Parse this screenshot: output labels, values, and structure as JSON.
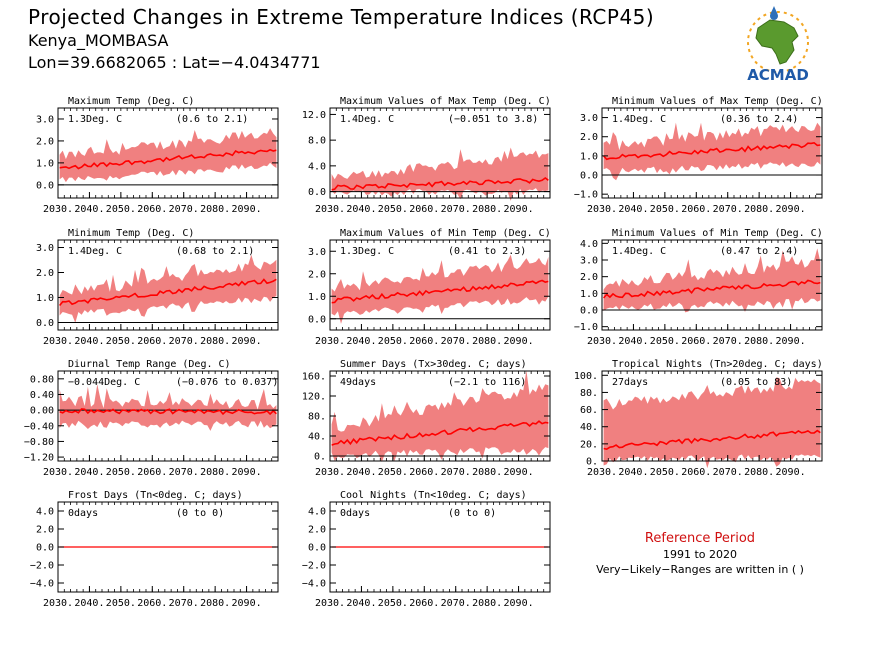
{
  "header": {
    "title": "Projected Changes in Extreme Temperature Indices (RCP45)",
    "location": "Kenya_MOMBASA",
    "coords": "Lon=39.6682065 : Lat=−4.0434771"
  },
  "logo": {
    "text": "ACMAD"
  },
  "reference": {
    "title": "Reference Period",
    "years": "1991 to 2020",
    "note": "Very−Likely−Ranges are written in ( )"
  },
  "colors": {
    "median": "#ff0000",
    "band": "#f08080",
    "zero_line": "#000000"
  },
  "chart_data": [
    {
      "id": "maxtemp",
      "type": "area",
      "title": "Maximum Temp (Deg. C)",
      "value_label": "1.3Deg. C",
      "range_label": "(0.6 to 2.1)",
      "x_range": [
        2030,
        2099
      ],
      "ylim": [
        -0.6,
        3.5
      ],
      "y_ticks": [
        0.0,
        1.0,
        2.0,
        3.0
      ],
      "tick_labels": [
        "0.0",
        "1.0",
        "2.0",
        "3.0"
      ],
      "median": {
        "start": 0.75,
        "end": 1.6
      },
      "band": {
        "low_start": 0.2,
        "low_end": 0.9,
        "high_start": 1.3,
        "high_end": 2.4
      }
    },
    {
      "id": "maxmaxtemp",
      "type": "area",
      "title": "Maximum Values of Max Temp (Deg. C)",
      "value_label": "1.4Deg. C",
      "range_label": "(−0.051 to 3.8)",
      "x_range": [
        2030,
        2099
      ],
      "ylim": [
        -1.0,
        13.0
      ],
      "y_ticks": [
        0.0,
        4.0,
        8.0,
        12.0
      ],
      "tick_labels": [
        "0.0",
        "4.0",
        "8.0",
        "12.0"
      ],
      "median": {
        "start": 0.6,
        "end": 1.8
      },
      "band": {
        "low_start": -0.3,
        "low_end": 0.2,
        "high_start": 2.0,
        "high_end": 6.0
      }
    },
    {
      "id": "minmaxtemp",
      "type": "area",
      "title": "Minimum Values of Max Temp (Deg. C)",
      "value_label": "1.4Deg. C",
      "range_label": "(0.36 to 2.4)",
      "x_range": [
        2030,
        2099
      ],
      "ylim": [
        -1.2,
        3.5
      ],
      "y_ticks": [
        -1.0,
        0.0,
        1.0,
        2.0,
        3.0
      ],
      "tick_labels": [
        "−1.0",
        "0.0",
        "1.0",
        "2.0",
        "3.0"
      ],
      "median": {
        "start": 0.9,
        "end": 1.6
      },
      "band": {
        "low_start": 0.2,
        "low_end": 0.6,
        "high_start": 1.5,
        "high_end": 2.6
      }
    },
    {
      "id": "mintemp",
      "type": "area",
      "title": "Minimum Temp (Deg. C)",
      "value_label": "1.4Deg. C",
      "range_label": "(0.68 to 2.1)",
      "x_range": [
        2030,
        2099
      ],
      "ylim": [
        -0.3,
        3.3
      ],
      "y_ticks": [
        0.0,
        1.0,
        2.0,
        3.0
      ],
      "tick_labels": [
        "0.0",
        "1.0",
        "2.0",
        "3.0"
      ],
      "median": {
        "start": 0.75,
        "end": 1.7
      },
      "band": {
        "low_start": 0.3,
        "low_end": 1.0,
        "high_start": 1.1,
        "high_end": 2.4
      }
    },
    {
      "id": "maxmintemp",
      "type": "area",
      "title": "Maximum Values of Min Temp (Deg. C)",
      "value_label": "1.3Deg. C",
      "range_label": "(0.41 to 2.3)",
      "x_range": [
        2030,
        2099
      ],
      "ylim": [
        -0.5,
        3.5
      ],
      "y_ticks": [
        0.0,
        1.0,
        2.0,
        3.0
      ],
      "tick_labels": [
        "0.0",
        "1.0",
        "2.0",
        "3.0"
      ],
      "median": {
        "start": 0.8,
        "end": 1.65
      },
      "band": {
        "low_start": 0.2,
        "low_end": 0.9,
        "high_start": 1.3,
        "high_end": 2.6
      }
    },
    {
      "id": "minmintemp",
      "type": "area",
      "title": "Minimum Values of Min Temp (Deg. C)",
      "value_label": "1.4Deg. C",
      "range_label": "(0.47 to 2.4)",
      "x_range": [
        2030,
        2099
      ],
      "ylim": [
        -1.2,
        4.2
      ],
      "y_ticks": [
        -1.0,
        0.0,
        1.0,
        2.0,
        3.0,
        4.0
      ],
      "tick_labels": [
        "−1.0",
        "0.0",
        "1.0",
        "2.0",
        "3.0",
        "4.0"
      ],
      "median": {
        "start": 0.8,
        "end": 1.7
      },
      "band": {
        "low_start": 0.1,
        "low_end": 0.6,
        "high_start": 1.5,
        "high_end": 2.9
      }
    },
    {
      "id": "dtr",
      "type": "area",
      "title": "Diurnal Temp Range (Deg. C)",
      "value_label": "−0.044Deg. C",
      "range_label": "(−0.076 to 0.037)",
      "x_range": [
        2030,
        2099
      ],
      "ylim": [
        -1.3,
        1.0
      ],
      "y_ticks": [
        -1.2,
        -0.8,
        -0.4,
        0.0,
        0.4,
        0.8
      ],
      "tick_labels": [
        "−1.20",
        "−0.80",
        "−0.40",
        "0.00",
        "0.40",
        "0.80"
      ],
      "median": {
        "start": -0.02,
        "end": -0.05
      },
      "band": {
        "low_start": -0.35,
        "low_end": -0.35,
        "high_start": 0.2,
        "high_end": 0.15
      }
    },
    {
      "id": "su30",
      "type": "area",
      "title": "Summer Days (Tx>30deg. C; days)",
      "value_label": "49days",
      "range_label": "(−2.1 to 116)",
      "x_range": [
        2030,
        2099
      ],
      "ylim": [
        -10,
        170
      ],
      "y_ticks": [
        0,
        40,
        80,
        120,
        160
      ],
      "tick_labels": [
        "0.",
        "40.",
        "80.",
        "120.",
        "160."
      ],
      "median": {
        "start": 25,
        "end": 68
      },
      "band": {
        "low_start": 2,
        "low_end": 15,
        "high_start": 55,
        "high_end": 140
      }
    },
    {
      "id": "tr20",
      "type": "area",
      "title": "Tropical Nights (Tn>20deg. C; days)",
      "value_label": "27days",
      "range_label": "(0.05 to 83)",
      "x_range": [
        2030,
        2099
      ],
      "ylim": [
        0,
        105
      ],
      "y_ticks": [
        0,
        20,
        40,
        60,
        80,
        100
      ],
      "tick_labels": [
        "0.",
        "20.",
        "40.",
        "60.",
        "80.",
        "100."
      ],
      "median": {
        "start": 16,
        "end": 35
      },
      "band": {
        "low_start": 2,
        "low_end": 5,
        "high_start": 65,
        "high_end": 92
      }
    },
    {
      "id": "fd",
      "type": "area",
      "title": "Frost Days (Tn<0deg. C; days)",
      "value_label": "0days",
      "range_label": "(0 to 0)",
      "x_range": [
        2030,
        2099
      ],
      "ylim": [
        -5,
        5
      ],
      "y_ticks": [
        -4.0,
        -2.0,
        0.0,
        2.0,
        4.0
      ],
      "tick_labels": [
        "−4.0",
        "−2.0",
        "0.0",
        "2.0",
        "4.0"
      ],
      "median": {
        "start": 0,
        "end": 0
      },
      "band": {
        "low_start": 0,
        "low_end": 0,
        "high_start": 0,
        "high_end": 0
      }
    },
    {
      "id": "cn10",
      "type": "area",
      "title": "Cool Nights (Tn<10deg. C; days)",
      "value_label": "0days",
      "range_label": "(0 to 0)",
      "x_range": [
        2030,
        2099
      ],
      "ylim": [
        -5,
        5
      ],
      "y_ticks": [
        -4.0,
        -2.0,
        0.0,
        2.0,
        4.0
      ],
      "tick_labels": [
        "−4.0",
        "−2.0",
        "0.0",
        "2.0",
        "4.0"
      ],
      "median": {
        "start": 0,
        "end": 0
      },
      "band": {
        "low_start": 0,
        "low_end": 0,
        "high_start": 0,
        "high_end": 0
      }
    }
  ],
  "x_tick_labels": [
    "2030.",
    "2040.",
    "2050.",
    "2060.",
    "2070.",
    "2080.",
    "2090."
  ]
}
